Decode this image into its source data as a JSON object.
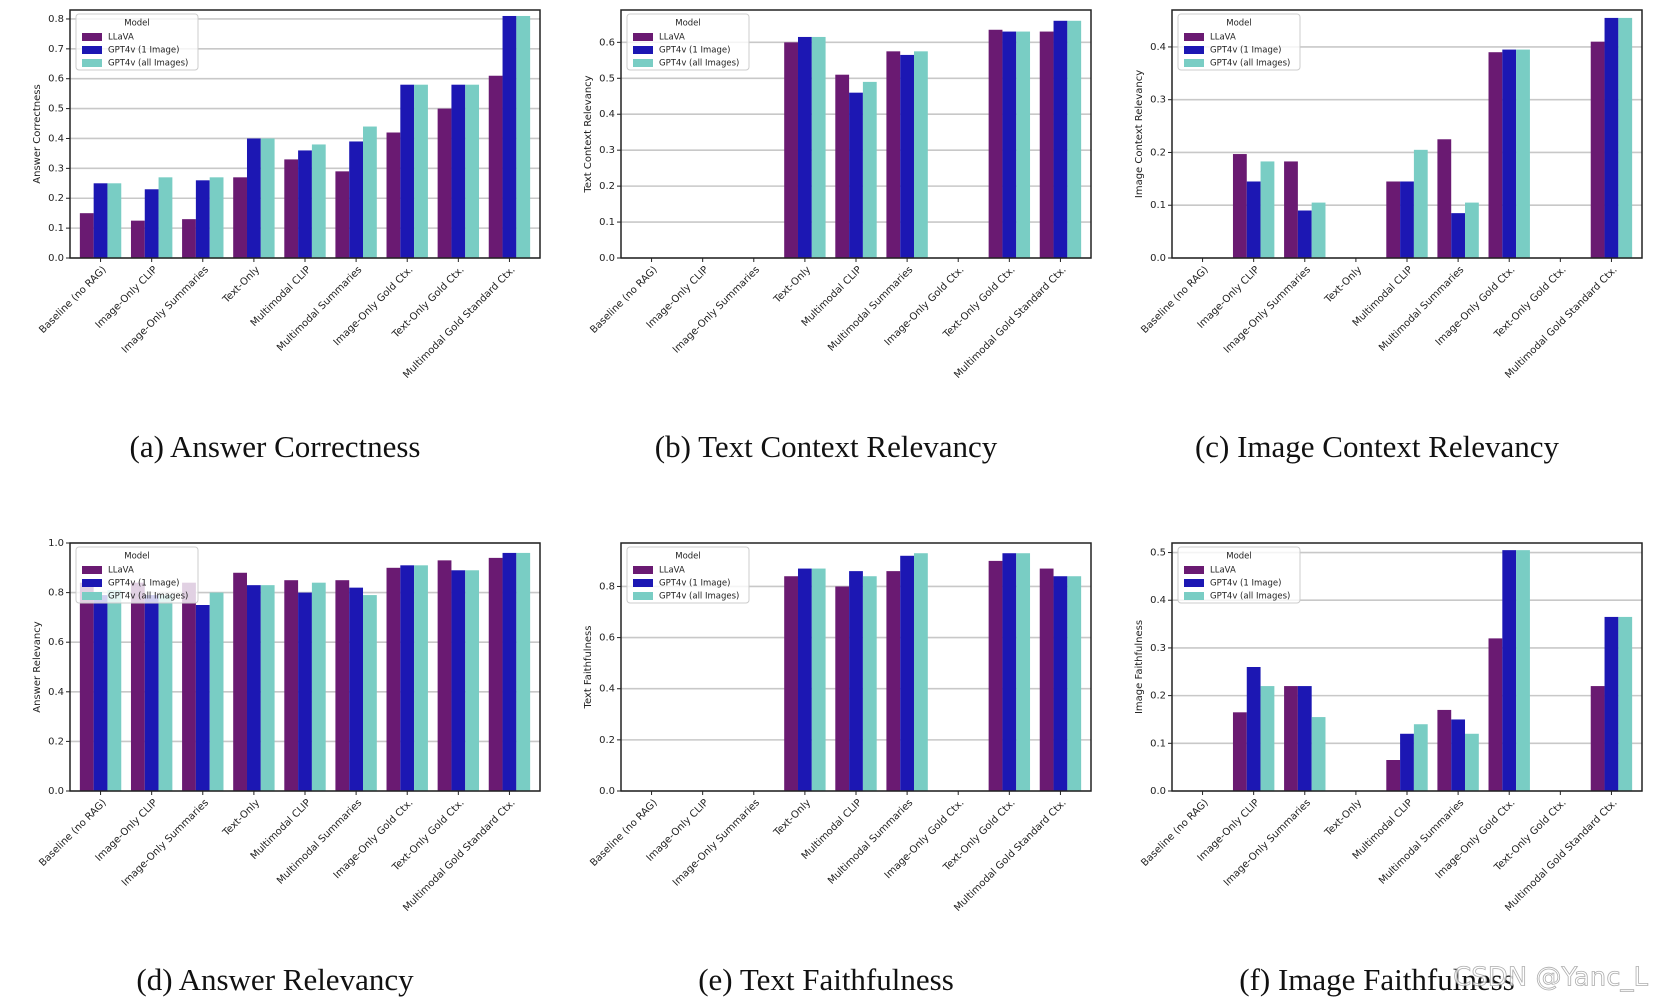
{
  "chart_data": [
    {
      "type": "bar",
      "title": "(a) Answer Correctness",
      "y_label": "Answer Correctness",
      "legend_title": "Model",
      "categories": [
        "Baseline (no RAG)",
        "Image-Only CLIP",
        "Image-Only Summaries",
        "Text-Only",
        "Multimodal CLIP",
        "Multimodal Summaries",
        "Image-Only Gold Ctx.",
        "Text-Only Gold Ctx.",
        "Multimodal Gold Standard Ctx."
      ],
      "series": [
        {
          "name": "LLaVA",
          "color": "#6a1a72",
          "values": [
            0.15,
            0.125,
            0.13,
            0.27,
            0.33,
            0.29,
            0.42,
            0.5,
            0.61
          ]
        },
        {
          "name": "GPT4v (1 Image)",
          "color": "#1c17b3",
          "values": [
            0.25,
            0.23,
            0.26,
            0.4,
            0.36,
            0.39,
            0.58,
            0.58,
            0.81
          ]
        },
        {
          "name": "GPT4v (all Images)",
          "color": "#79cdc4",
          "values": [
            0.25,
            0.27,
            0.27,
            0.4,
            0.38,
            0.44,
            0.58,
            0.58,
            0.81
          ]
        }
      ],
      "ylim": [
        0,
        0.83
      ],
      "yticks": [
        {
          "value": 0,
          "label": "0.0"
        },
        0.1,
        0.2,
        0.3,
        0.4,
        0.5,
        0.6,
        0.7,
        0.8
      ],
      "grid": true,
      "legend": "upper-left"
    },
    {
      "type": "bar",
      "title": "(b) Text Context Relevancy",
      "y_label": "Text Context Relevancy",
      "legend_title": "Model",
      "categories": [
        "Baseline (no RAG)",
        "Image-Only CLIP",
        "Image-Only Summaries",
        "Text-Only",
        "Multimodal CLIP",
        "Multimodal Summaries",
        "Image-Only Gold Ctx.",
        "Text-Only Gold Ctx.",
        "Multimodal Gold Standard Ctx."
      ],
      "series": [
        {
          "name": "LLaVA",
          "color": "#6a1a72",
          "values": [
            null,
            null,
            null,
            0.6,
            0.51,
            0.575,
            null,
            0.635,
            0.63
          ]
        },
        {
          "name": "GPT4v (1 Image)",
          "color": "#1c17b3",
          "values": [
            null,
            null,
            null,
            0.615,
            0.46,
            0.565,
            null,
            0.63,
            0.66
          ]
        },
        {
          "name": "GPT4v (all Images)",
          "color": "#79cdc4",
          "values": [
            null,
            null,
            null,
            0.615,
            0.49,
            0.575,
            null,
            0.63,
            0.66
          ]
        }
      ],
      "ylim": [
        0,
        0.69
      ],
      "yticks": [
        {
          "value": 0,
          "label": "0.0"
        },
        0.1,
        0.2,
        0.3,
        0.4,
        0.5,
        0.6
      ],
      "grid": true,
      "legend": "upper-left"
    },
    {
      "type": "bar",
      "title": "(c) Image Context Relevancy",
      "y_label": "Image Context Relevancy",
      "legend_title": "Model",
      "categories": [
        "Baseline (no RAG)",
        "Image-Only CLIP",
        "Image-Only Summaries",
        "Text-Only",
        "Multimodal CLIP",
        "Multimodal Summaries",
        "Image-Only Gold Ctx.",
        "Text-Only Gold Ctx.",
        "Multimodal Gold Standard Ctx."
      ],
      "series": [
        {
          "name": "LLaVA",
          "color": "#6a1a72",
          "values": [
            null,
            0.197,
            0.183,
            null,
            0.145,
            0.225,
            0.39,
            null,
            0.41
          ]
        },
        {
          "name": "GPT4v (1 Image)",
          "color": "#1c17b3",
          "values": [
            null,
            0.145,
            0.09,
            null,
            0.145,
            0.085,
            0.395,
            null,
            0.455
          ]
        },
        {
          "name": "GPT4v (all Images)",
          "color": "#79cdc4",
          "values": [
            null,
            0.183,
            0.105,
            null,
            0.205,
            0.105,
            0.395,
            null,
            0.455
          ]
        }
      ],
      "ylim": [
        0,
        0.47
      ],
      "yticks": [
        {
          "value": 0,
          "label": "0.0"
        },
        0.1,
        0.2,
        0.3,
        0.4
      ],
      "grid": true,
      "legend": "upper-left"
    },
    {
      "type": "bar",
      "title": "(d) Answer Relevancy",
      "y_label": "Answer Relevancy",
      "legend_title": "Model",
      "categories": [
        "Baseline (no RAG)",
        "Image-Only CLIP",
        "Image-Only Summaries",
        "Text-Only",
        "Multimodal CLIP",
        "Multimodal Summaries",
        "Image-Only Gold Ctx.",
        "Text-Only Gold Ctx.",
        "Multimodal Gold Standard Ctx."
      ],
      "series": [
        {
          "name": "LLaVA",
          "color": "#6a1a72",
          "values": [
            0.84,
            0.84,
            0.84,
            0.88,
            0.85,
            0.85,
            0.9,
            0.93,
            0.94
          ]
        },
        {
          "name": "GPT4v (1 Image)",
          "color": "#1c17b3",
          "values": [
            0.79,
            0.79,
            0.75,
            0.83,
            0.8,
            0.82,
            0.91,
            0.89,
            0.96
          ]
        },
        {
          "name": "GPT4v (all Images)",
          "color": "#79cdc4",
          "values": [
            0.81,
            0.79,
            0.8,
            0.83,
            0.84,
            0.79,
            0.91,
            0.89,
            0.96
          ]
        }
      ],
      "ylim": [
        0,
        1.0
      ],
      "yticks": [
        {
          "value": 0,
          "label": "0.0"
        },
        0.2,
        0.4,
        0.6,
        0.8,
        {
          "value": 1,
          "label": "1.0"
        }
      ],
      "grid": true,
      "legend": "upper-left"
    },
    {
      "type": "bar",
      "title": "(e) Text Faithfulness",
      "y_label": "Text Faithfulness",
      "legend_title": "Model",
      "categories": [
        "Baseline (no RAG)",
        "Image-Only CLIP",
        "Image-Only Summaries",
        "Text-Only",
        "Multimodal CLIP",
        "Multimodal Summaries",
        "Image-Only Gold Ctx.",
        "Text-Only Gold Ctx.",
        "Multimodal Gold Standard Ctx."
      ],
      "series": [
        {
          "name": "LLaVA",
          "color": "#6a1a72",
          "values": [
            null,
            null,
            null,
            0.84,
            0.8,
            0.86,
            null,
            0.9,
            0.87
          ]
        },
        {
          "name": "GPT4v (1 Image)",
          "color": "#1c17b3",
          "values": [
            null,
            null,
            null,
            0.87,
            0.86,
            0.92,
            null,
            0.93,
            0.84
          ]
        },
        {
          "name": "GPT4v (all Images)",
          "color": "#79cdc4",
          "values": [
            null,
            null,
            null,
            0.87,
            0.84,
            0.93,
            null,
            0.93,
            0.84
          ]
        }
      ],
      "ylim": [
        0,
        0.97
      ],
      "yticks": [
        {
          "value": 0,
          "label": "0.0"
        },
        0.2,
        0.4,
        0.6,
        0.8
      ],
      "grid": true,
      "legend": "upper-left"
    },
    {
      "type": "bar",
      "title": "(f) Image Faithfulness",
      "y_label": "Image Faithfulness",
      "legend_title": "Model",
      "categories": [
        "Baseline (no RAG)",
        "Image-Only CLIP",
        "Image-Only Summaries",
        "Text-Only",
        "Multimodal CLIP",
        "Multimodal Summaries",
        "Image-Only Gold Ctx.",
        "Text-Only Gold Ctx.",
        "Multimodal Gold Standard Ctx."
      ],
      "series": [
        {
          "name": "LLaVA",
          "color": "#6a1a72",
          "values": [
            null,
            0.165,
            0.22,
            null,
            0.065,
            0.17,
            0.32,
            null,
            0.22
          ]
        },
        {
          "name": "GPT4v (1 Image)",
          "color": "#1c17b3",
          "values": [
            null,
            0.26,
            0.22,
            null,
            0.12,
            0.15,
            0.505,
            null,
            0.365
          ]
        },
        {
          "name": "GPT4v (all Images)",
          "color": "#79cdc4",
          "values": [
            null,
            0.22,
            0.155,
            null,
            0.14,
            0.12,
            0.505,
            null,
            0.365
          ]
        }
      ],
      "ylim": [
        0,
        0.52
      ],
      "yticks": [
        {
          "value": 0,
          "label": "0.0"
        },
        0.1,
        0.2,
        0.3,
        0.4,
        0.5
      ],
      "grid": true,
      "legend": "upper-left"
    }
  ],
  "watermark": "CSDN @Yanc_L"
}
